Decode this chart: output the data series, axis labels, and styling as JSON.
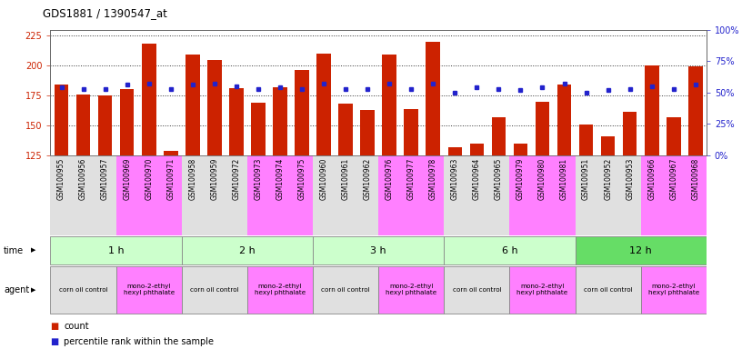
{
  "title": "GDS1881 / 1390547_at",
  "samples": [
    "GSM100955",
    "GSM100956",
    "GSM100957",
    "GSM100969",
    "GSM100970",
    "GSM100971",
    "GSM100958",
    "GSM100959",
    "GSM100972",
    "GSM100973",
    "GSM100974",
    "GSM100975",
    "GSM100960",
    "GSM100961",
    "GSM100962",
    "GSM100976",
    "GSM100977",
    "GSM100978",
    "GSM100963",
    "GSM100964",
    "GSM100965",
    "GSM100979",
    "GSM100980",
    "GSM100981",
    "GSM100951",
    "GSM100952",
    "GSM100953",
    "GSM100966",
    "GSM100967",
    "GSM100968"
  ],
  "counts": [
    184,
    176,
    175,
    180,
    218,
    129,
    209,
    205,
    181,
    169,
    182,
    196,
    210,
    168,
    163,
    209,
    164,
    220,
    132,
    135,
    157,
    135,
    170,
    184,
    151,
    141,
    161,
    200,
    157,
    199
  ],
  "percentiles": [
    54,
    53,
    53,
    56,
    57,
    53,
    56,
    57,
    55,
    53,
    54,
    53,
    57,
    53,
    53,
    57,
    53,
    57,
    50,
    54,
    53,
    52,
    54,
    57,
    50,
    52,
    53,
    55,
    53,
    56
  ],
  "time_groups": [
    {
      "label": "1 h",
      "start": 0,
      "end": 6
    },
    {
      "label": "2 h",
      "start": 6,
      "end": 12
    },
    {
      "label": "3 h",
      "start": 12,
      "end": 18
    },
    {
      "label": "6 h",
      "start": 18,
      "end": 24
    },
    {
      "label": "12 h",
      "start": 24,
      "end": 30
    }
  ],
  "agent_groups": [
    {
      "label": "corn oil control",
      "start": 0,
      "end": 3,
      "color": "#e0e0e0"
    },
    {
      "label": "mono-2-ethyl\nhexyl phthalate",
      "start": 3,
      "end": 6,
      "color": "#ff80ff"
    },
    {
      "label": "corn oil control",
      "start": 6,
      "end": 9,
      "color": "#e0e0e0"
    },
    {
      "label": "mono-2-ethyl\nhexyl phthalate",
      "start": 9,
      "end": 12,
      "color": "#ff80ff"
    },
    {
      "label": "corn oil control",
      "start": 12,
      "end": 15,
      "color": "#e0e0e0"
    },
    {
      "label": "mono-2-ethyl\nhexyl phthalate",
      "start": 15,
      "end": 18,
      "color": "#ff80ff"
    },
    {
      "label": "corn oil control",
      "start": 18,
      "end": 21,
      "color": "#e0e0e0"
    },
    {
      "label": "mono-2-ethyl\nhexyl phthalate",
      "start": 21,
      "end": 24,
      "color": "#ff80ff"
    },
    {
      "label": "corn oil control",
      "start": 24,
      "end": 27,
      "color": "#e0e0e0"
    },
    {
      "label": "mono-2-ethyl\nhexyl phthalate",
      "start": 27,
      "end": 30,
      "color": "#ff80ff"
    }
  ],
  "ylim_left": [
    125,
    230
  ],
  "ylim_right": [
    0,
    100
  ],
  "yticks_left": [
    125,
    150,
    175,
    200,
    225
  ],
  "yticks_right": [
    0,
    25,
    50,
    75,
    100
  ],
  "bar_color": "#cc2200",
  "dot_color": "#2222cc",
  "bg_color": "#ffffff",
  "time_bg_color": "#ccffcc",
  "time_bg_color_dark": "#66dd66",
  "agent_corn_color": "#e0e0e0",
  "agent_mono_color": "#ff80ff",
  "grid_color": "#333333",
  "ylabel_left_color": "#cc2200",
  "ylabel_right_color": "#2222cc"
}
